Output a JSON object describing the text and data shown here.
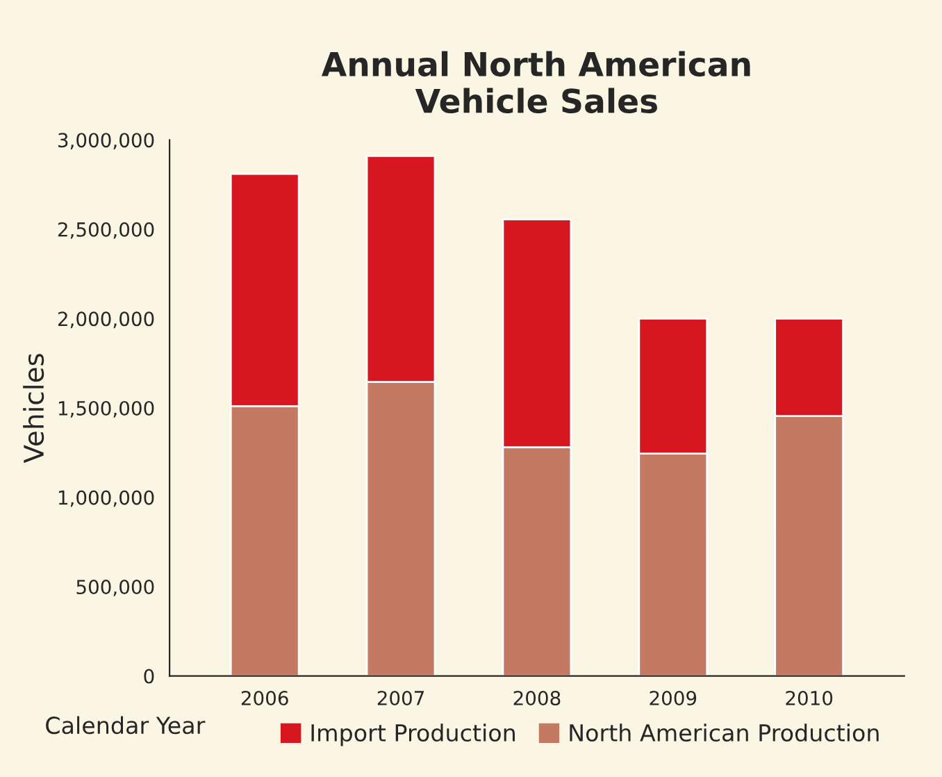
{
  "chart_data": {
    "type": "bar",
    "title": "Annual North American\nVehicle Sales",
    "xlabel": "Calendar Year",
    "ylabel": "Vehicles",
    "categories": [
      "2006",
      "2007",
      "2008",
      "2009",
      "2010"
    ],
    "stacked": true,
    "series": [
      {
        "name": "North American Production",
        "color": "#c47a62",
        "values": [
          1510000,
          1645000,
          1280000,
          1245000,
          1455000
        ]
      },
      {
        "name": "Import Production",
        "color": "#d7171f",
        "values": [
          1300000,
          1265000,
          1275000,
          755000,
          545000
        ]
      }
    ],
    "ylim": [
      0,
      3000000
    ],
    "yticks": [
      {
        "value": 0,
        "label": "0"
      },
      {
        "value": 500000,
        "label": "500,000"
      },
      {
        "value": 1000000,
        "label": "1,000,000"
      },
      {
        "value": 1500000,
        "label": "1,500,000"
      },
      {
        "value": 2000000,
        "label": "2,000,000"
      },
      {
        "value": 2500000,
        "label": "2,500,000"
      },
      {
        "value": 3000000,
        "label": "3,000,000"
      }
    ],
    "grid": false,
    "legend": "bottom"
  }
}
